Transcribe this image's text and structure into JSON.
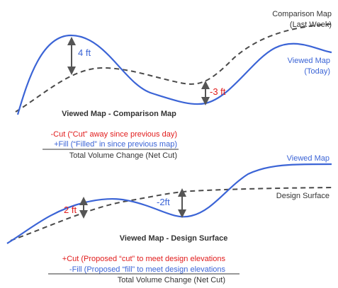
{
  "colors": {
    "viewed": "#3b64d6",
    "reference": "#4a4a4a",
    "red": "#e11b1b",
    "dark": "#333333"
  },
  "top": {
    "comparison_label_line1": "Comparison Map",
    "comparison_label_line2": "(Last Week)",
    "viewed_label_line1": "Viewed Map",
    "viewed_label_line2": "(Today)",
    "diff_up": "4 ft",
    "diff_down": "-3 ft",
    "title": "Viewed Map - Comparison Map",
    "cut_line": "-Cut (“Cut” away since previous day)",
    "fill_line": "+Fill (“Filled” in since previous map)",
    "total_line": "Total Volume Change (Net Cut)"
  },
  "bottom": {
    "viewed_label": "Viewed Map",
    "design_label": "Design Surface",
    "diff_up": "2 ft",
    "diff_down": "-2ft",
    "title": "Viewed Map - Design Surface",
    "cut_line": "+Cut (Proposed “cut” to meet design elevations",
    "fill_line": "-Fill (Proposed “fill” to meet design elevations",
    "total_line": "Total Volume Change (Net Cut)"
  }
}
